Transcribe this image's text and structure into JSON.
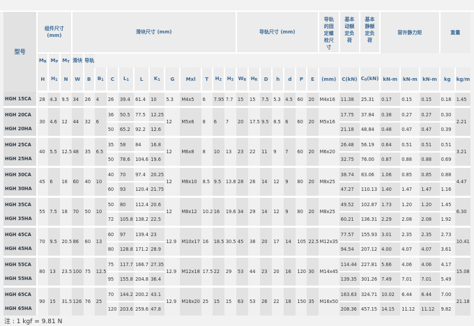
{
  "header": {
    "model": "型号",
    "groups": {
      "assembly": "组件尺寸 (mm)",
      "block": "滑块尺寸 (mm)",
      "rail": "导轨尺寸 (mm)",
      "bolt": "导轨的固定螺栓尺寸",
      "dynamic": "基本动额定负荷",
      "static": "基本静额定负荷",
      "moment": "容许静力矩",
      "weight": "重量"
    },
    "cols": [
      {
        "main": "H",
        "sub": ""
      },
      {
        "main": "H",
        "sub": "1"
      },
      {
        "main": "N",
        "sub": ""
      },
      {
        "main": "W",
        "sub": ""
      },
      {
        "main": "B",
        "sub": ""
      },
      {
        "main": "B",
        "sub": "1"
      },
      {
        "main": "C",
        "sub": ""
      },
      {
        "main": "L",
        "sub": "1"
      },
      {
        "main": "L",
        "sub": ""
      },
      {
        "main": "K",
        "sub": "1"
      },
      {
        "main": "G",
        "sub": ""
      },
      {
        "main": "Mxl",
        "sub": ""
      },
      {
        "main": "T",
        "sub": ""
      },
      {
        "main": "H",
        "sub": "2"
      },
      {
        "main": "H",
        "sub": "3"
      },
      {
        "main": "W",
        "sub": "R"
      },
      {
        "main": "H",
        "sub": "R"
      },
      {
        "main": "D",
        "sub": ""
      },
      {
        "main": "h",
        "sub": ""
      },
      {
        "main": "d",
        "sub": ""
      },
      {
        "main": "P",
        "sub": ""
      },
      {
        "main": "E",
        "sub": ""
      },
      {
        "main": "(mm)",
        "sub": ""
      },
      {
        "main": "C(kN)",
        "sub": ""
      },
      {
        "main": "C",
        "sub": "0",
        "after": "(kN)"
      }
    ],
    "moment_cols": [
      {
        "main": "M",
        "sub": "R"
      },
      {
        "main": "M",
        "sub": "P"
      },
      {
        "main": "M",
        "sub": "Y"
      }
    ],
    "moment_unit": "kN-m",
    "weight_cols": [
      "滑块",
      "导轨"
    ],
    "weight_units": [
      "kg",
      "kg/m"
    ]
  },
  "groups": [
    {
      "shared": {
        "H": "28",
        "H1": "4.3",
        "N": "9.5",
        "W": "34",
        "B": "26",
        "B1": "4",
        "G": "5.3",
        "Mxl": "M4x5",
        "T": "6",
        "H2": "7.95",
        "H3": "7.7",
        "WR": "15",
        "HR": "15",
        "D": "7.5",
        "h": "5.3",
        "d": "4.5",
        "P": "60",
        "E": "20",
        "bolt": "M4x16",
        "rail_kgm": "1.45"
      },
      "models": [
        {
          "name": "HGH 15CA",
          "C": "26",
          "L1": "39.4",
          "L": "61.4",
          "K1": "10",
          "Cdyn": "11.38",
          "C0": "25.31",
          "MR": "0.17",
          "MP": "0.15",
          "MY": "0.15",
          "kg": "0.18"
        }
      ]
    },
    {
      "shared": {
        "H": "30",
        "H1": "4.6",
        "N": "12",
        "W": "44",
        "B": "32",
        "B1": "6",
        "G": "12",
        "Mxl": "M5x6",
        "T": "8",
        "H2": "6",
        "H3": "7",
        "WR": "20",
        "HR": "17.5",
        "D": "9.5",
        "h": "8.5",
        "d": "6",
        "P": "60",
        "E": "20",
        "bolt": "M5x16",
        "rail_kgm": "2.21"
      },
      "models": [
        {
          "name": "HGH 20CA",
          "C": "36",
          "L1": "50.5",
          "L": "77.5",
          "K1": "12.25",
          "Cdyn": "17.75",
          "C0": "37.84",
          "MR": "0.38",
          "MP": "0.27",
          "MY": "0.27",
          "kg": "0.30"
        },
        {
          "name": "HGH 20HA",
          "C": "50",
          "L1": "65.2",
          "L": "92.2",
          "K1": "12.6",
          "Cdyn": "21.18",
          "C0": "48.84",
          "MR": "0.48",
          "MP": "0.47",
          "MY": "0.47",
          "kg": "0.39"
        }
      ]
    },
    {
      "shared": {
        "H": "40",
        "H1": "5.5",
        "N": "12.5",
        "W": "48",
        "B": "35",
        "B1": "6.5",
        "G": "12",
        "Mxl": "M6x8",
        "T": "8",
        "H2": "10",
        "H3": "13",
        "WR": "23",
        "HR": "22",
        "D": "11",
        "h": "9",
        "d": "7",
        "P": "60",
        "E": "20",
        "bolt": "M6x20",
        "rail_kgm": "3.21"
      },
      "models": [
        {
          "name": "HGH 25CA",
          "C": "35",
          "L1": "58",
          "L": "84",
          "K1": "16.8",
          "Cdyn": "26.48",
          "C0": "56.19",
          "MR": "0.64",
          "MP": "0.51",
          "MY": "0.51",
          "kg": "0.51"
        },
        {
          "name": "HGH 25HA",
          "C": "50",
          "L1": "78.6",
          "L": "104.6",
          "K1": "19.6",
          "Cdyn": "32.75",
          "C0": "76.00",
          "MR": "0.87",
          "MP": "0.88",
          "MY": "0.88",
          "kg": "0.69"
        }
      ]
    },
    {
      "shared": {
        "H": "45",
        "H1": "6",
        "N": "16",
        "W": "60",
        "B": "40",
        "B1": "10",
        "G": "12",
        "Mxl": "M8x10",
        "T": "8.5",
        "H2": "9.5",
        "H3": "13.8",
        "WR": "28",
        "HR": "26",
        "D": "14",
        "h": "12",
        "d": "9",
        "P": "80",
        "E": "20",
        "bolt": "M8x25",
        "rail_kgm": "4.47"
      },
      "models": [
        {
          "name": "HGH 30CA",
          "C": "40",
          "L1": "70",
          "L": "97.4",
          "K1": "20.25",
          "Cdyn": "38.74",
          "C0": "83.06",
          "MR": "1.06",
          "MP": "0.85",
          "MY": "0.85",
          "kg": "0.88"
        },
        {
          "name": "HGH 30HA",
          "C": "60",
          "L1": "93",
          "L": "120.4",
          "K1": "21.75",
          "Cdyn": "47.27",
          "C0": "110.13",
          "MR": "1.40",
          "MP": "1.47",
          "MY": "1.47",
          "kg": "1.16"
        }
      ]
    },
    {
      "shared": {
        "H": "55",
        "H1": "7.5",
        "N": "18",
        "W": "70",
        "B": "50",
        "B1": "10",
        "G": "12",
        "Mxl": "M8x12",
        "T": "10.2",
        "H2": "16",
        "H3": "19.6",
        "WR": "34",
        "HR": "29",
        "D": "14",
        "h": "12",
        "d": "9",
        "P": "80",
        "E": "20",
        "bolt": "M8x25",
        "rail_kgm": "6.30"
      },
      "models": [
        {
          "name": "HGH 35CA",
          "C": "50",
          "L1": "80",
          "L": "112.4",
          "K1": "20.6",
          "Cdyn": "49.52",
          "C0": "102.87",
          "MR": "1.73",
          "MP": "1.20",
          "MY": "1.20",
          "kg": "1.45"
        },
        {
          "name": "HGH 35HA",
          "C": "72",
          "L1": "105.8",
          "L": "138.2",
          "K1": "22.5",
          "Cdyn": "60.21",
          "C0": "136.31",
          "MR": "2.29",
          "MP": "2.08",
          "MY": "2.08",
          "kg": "1.92"
        }
      ]
    },
    {
      "shared": {
        "H": "70",
        "H1": "9.5",
        "N": "20.5",
        "W": "86",
        "B": "60",
        "B1": "13",
        "G": "12.9",
        "Mxl": "M10x17",
        "T": "16",
        "H2": "18.5",
        "H3": "30.5",
        "WR": "45",
        "HR": "38",
        "D": "20",
        "h": "17",
        "d": "14",
        "P": "105",
        "E": "22.5",
        "bolt": "M12x35",
        "rail_kgm": "10.41"
      },
      "models": [
        {
          "name": "HGH 45CA",
          "C": "60",
          "L1": "97",
          "L": "139.4",
          "K1": "23",
          "Cdyn": "77.57",
          "C0": "155.93",
          "MR": "3.01",
          "MP": "2.35",
          "MY": "2.35",
          "kg": "2.73"
        },
        {
          "name": "HGH 45HA",
          "C": "80",
          "L1": "128.8",
          "L": "171.2",
          "K1": "28.9",
          "Cdyn": "94.54",
          "C0": "207.12",
          "MR": "4.00",
          "MP": "4.07",
          "MY": "4.07",
          "kg": "3.61"
        }
      ]
    },
    {
      "shared": {
        "H": "80",
        "H1": "13",
        "N": "23.5",
        "W": "100",
        "B": "75",
        "B1": "12.5",
        "G": "12.9",
        "Mxl": "M12x18",
        "T": "17.5",
        "H2": "22",
        "H3": "29",
        "WR": "53",
        "HR": "44",
        "D": "23",
        "h": "20",
        "d": "16",
        "P": "120",
        "E": "30",
        "bolt": "M14x45",
        "rail_kgm": "15.08"
      },
      "models": [
        {
          "name": "HGH 55CA",
          "C": "75",
          "L1": "117.7",
          "L": "166.7",
          "K1": "27.35",
          "Cdyn": "114.44",
          "C0": "227.81",
          "MR": "5.66",
          "MP": "4.06",
          "MY": "4.06",
          "kg": "4.17"
        },
        {
          "name": "HGH 55HA",
          "C": "95",
          "L1": "155.8",
          "L": "204.8",
          "K1": "36.4",
          "Cdyn": "139.35",
          "C0": "301.26",
          "MR": "7.49",
          "MP": "7.01",
          "MY": "7.01",
          "kg": "5.49"
        }
      ]
    },
    {
      "shared": {
        "H": "90",
        "H1": "15",
        "N": "31.5",
        "W": "126",
        "B": "76",
        "B1": "25",
        "G": "12.9",
        "Mxl": "M16x20",
        "T": "25",
        "H2": "15",
        "H3": "15",
        "WR": "63",
        "HR": "53",
        "D": "26",
        "h": "22",
        "d": "18",
        "P": "150",
        "E": "35",
        "bolt": "M16x50",
        "rail_kgm": "21.18"
      },
      "models": [
        {
          "name": "HGH 65CA",
          "C": "70",
          "L1": "144.2",
          "L": "200.2",
          "K1": "43.1",
          "Cdyn": "163.63",
          "C0": "324.71",
          "MR": "10.02",
          "MP": "6.44",
          "MY": "6.44",
          "kg": "7.00"
        },
        {
          "name": "HGH 65HA",
          "C": "120",
          "L1": "203.6",
          "L": "259.6",
          "K1": "47.8",
          "Cdyn": "208.36",
          "C0": "457.15",
          "MR": "14.15",
          "MP": "11.12",
          "MY": "11.12",
          "kg": "9.82"
        }
      ]
    }
  ],
  "note": "注 : 1 kgf = 9.81 N",
  "colors": {
    "header_text": "#3d6b96",
    "shade": "#e2e2e2",
    "light": "#f0f0f0"
  }
}
